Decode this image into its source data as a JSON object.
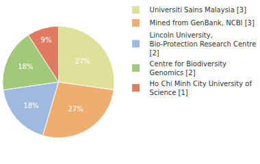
{
  "chart_data": {
    "type": "pie",
    "categories": [
      "Universiti Sains Malaysia [3]",
      "Mined from GenBank, NCBI [3]",
      "Lincoln University, Bio-Protection Research Centre [2]",
      "Centre for Biodiversity Genomics [2]",
      "Ho Chi Minh City University of Science [1]"
    ],
    "values": [
      27,
      27,
      18,
      18,
      9
    ],
    "value_labels": [
      "27%",
      "27%",
      "18%",
      "18%",
      "9%"
    ],
    "colors": [
      "#dfe19b",
      "#f0ad70",
      "#a0b9df",
      "#a2c87a",
      "#e07a60"
    ],
    "data_labels": true,
    "legend": "right"
  }
}
